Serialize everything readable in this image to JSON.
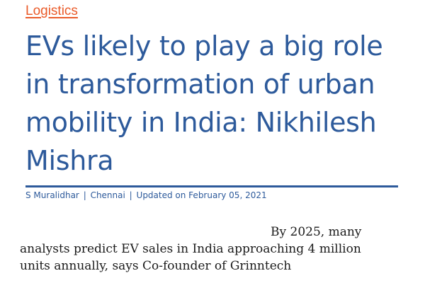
{
  "article": {
    "category": "Logistics",
    "headline_lines": [
      "EVs likely to play a big role",
      "in transformation of urban",
      "mobility in India: Nikhilesh",
      "Mishra"
    ],
    "byline": {
      "author": "S Muralidhar",
      "separator": "|",
      "location": "Chennai",
      "updated": "Updated on February 05, 2021"
    },
    "summary_lines": [
      "By 2025, many",
      "analysts predict EV sales in India approaching 4 million",
      "units annually, says Co-founder of Grinntech"
    ]
  },
  "colors": {
    "category": "#ea5b2a",
    "headline": "#2d5a9b",
    "body_text": "#1a1a1a"
  }
}
